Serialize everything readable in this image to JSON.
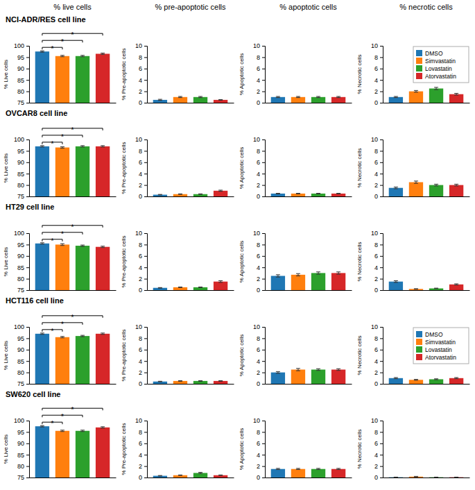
{
  "chart_data": [
    {
      "type": "bar",
      "title": "% live cells",
      "subtitle": "NCI-ADR/RES cell line",
      "ylabel": "% Live cells",
      "categories": [
        null
      ],
      "series": [
        {
          "values": [
            97.5
          ],
          "errors": [
            0.3
          ]
        },
        {
          "values": [
            95.5
          ],
          "errors": [
            0.3
          ]
        },
        {
          "values": [
            95.5
          ],
          "errors": [
            0.3
          ]
        },
        {
          "values": [
            96.5
          ],
          "errors": [
            0.3
          ]
        }
      ],
      "ylim": [
        75,
        100
      ],
      "yticks": [
        75,
        80,
        85,
        90,
        95,
        100
      ],
      "annotations": [
        {
          "text": "*",
          "from": 0,
          "to": 1
        },
        {
          "text": "*",
          "from": 0,
          "to": 2
        },
        {
          "text": "*",
          "from": 0,
          "to": 3
        }
      ]
    },
    {
      "type": "bar",
      "title": "% pre-apoptotic cells",
      "ylabel": "% Pre-apoptotic cells",
      "categories": [
        null
      ],
      "series": [
        {
          "values": [
            0.5
          ],
          "errors": [
            0.1
          ]
        },
        {
          "values": [
            1.0
          ],
          "errors": [
            0.1
          ]
        },
        {
          "values": [
            1.0
          ],
          "errors": [
            0.1
          ]
        },
        {
          "values": [
            0.5
          ],
          "errors": [
            0.05
          ]
        }
      ],
      "ylim": [
        0,
        10
      ],
      "yticks": [
        0,
        2,
        4,
        6,
        8,
        10
      ]
    },
    {
      "type": "bar",
      "title": "% apoptotic cells",
      "ylabel": "% Apoptotic cells",
      "categories": [
        null
      ],
      "series": [
        {
          "values": [
            1.0
          ],
          "errors": [
            0.1
          ]
        },
        {
          "values": [
            1.0
          ],
          "errors": [
            0.1
          ]
        },
        {
          "values": [
            1.0
          ],
          "errors": [
            0.1
          ]
        },
        {
          "values": [
            1.0
          ],
          "errors": [
            0.1
          ]
        }
      ],
      "ylim": [
        0,
        10
      ],
      "yticks": [
        0,
        2,
        4,
        6,
        8,
        10
      ]
    },
    {
      "type": "bar",
      "title": "% necrotic cells",
      "ylabel": "% Necrotic cells",
      "categories": [
        null
      ],
      "series": [
        {
          "name": "DMSO",
          "values": [
            1.0
          ],
          "errors": [
            0.1
          ]
        },
        {
          "name": "Simvastatin",
          "values": [
            2.0
          ],
          "errors": [
            0.15
          ]
        },
        {
          "name": "Lovastatin",
          "values": [
            2.5
          ],
          "errors": [
            0.2
          ]
        },
        {
          "name": "Atorvastatin",
          "values": [
            1.5
          ],
          "errors": [
            0.15
          ]
        }
      ],
      "ylim": [
        0,
        10
      ],
      "yticks": [
        0,
        2,
        4,
        6,
        8,
        10
      ],
      "legend": "upper right"
    },
    {
      "type": "bar",
      "subtitle": "OVCAR8 cell line",
      "ylabel": "% Live cells",
      "categories": [
        null
      ],
      "series": [
        {
          "values": [
            97.0
          ],
          "errors": [
            0.3
          ]
        },
        {
          "values": [
            96.5
          ],
          "errors": [
            0.3
          ]
        },
        {
          "values": [
            97.0
          ],
          "errors": [
            0.3
          ]
        },
        {
          "values": [
            97.0
          ],
          "errors": [
            0.3
          ]
        }
      ],
      "ylim": [
        75,
        100
      ],
      "yticks": [
        75,
        80,
        85,
        90,
        95,
        100
      ],
      "annotations": [
        {
          "text": "*",
          "from": 0,
          "to": 1
        },
        {
          "text": "*",
          "from": 0,
          "to": 2
        },
        {
          "text": "*",
          "from": 0,
          "to": 3
        }
      ]
    },
    {
      "type": "bar",
      "ylabel": "% Pre-apoptotic cells",
      "categories": [
        null
      ],
      "series": [
        {
          "values": [
            0.3
          ],
          "errors": [
            0.05
          ]
        },
        {
          "values": [
            0.4
          ],
          "errors": [
            0.05
          ]
        },
        {
          "values": [
            0.4
          ],
          "errors": [
            0.05
          ]
        },
        {
          "values": [
            1.0
          ],
          "errors": [
            0.1
          ]
        }
      ],
      "ylim": [
        0,
        10
      ],
      "yticks": [
        0,
        2,
        4,
        6,
        8,
        10
      ]
    },
    {
      "type": "bar",
      "ylabel": "% Apoptotic cells",
      "categories": [
        null
      ],
      "series": [
        {
          "values": [
            0.5
          ],
          "errors": [
            0.05
          ]
        },
        {
          "values": [
            0.5
          ],
          "errors": [
            0.05
          ]
        },
        {
          "values": [
            0.5
          ],
          "errors": [
            0.05
          ]
        },
        {
          "values": [
            0.5
          ],
          "errors": [
            0.05
          ]
        }
      ],
      "ylim": [
        0,
        10
      ],
      "yticks": [
        0,
        2,
        4,
        6,
        8,
        10
      ]
    },
    {
      "type": "bar",
      "ylabel": "% Necrotic cells",
      "categories": [
        null
      ],
      "series": [
        {
          "values": [
            1.5
          ],
          "errors": [
            0.15
          ]
        },
        {
          "values": [
            2.5
          ],
          "errors": [
            0.2
          ]
        },
        {
          "values": [
            2.0
          ],
          "errors": [
            0.15
          ]
        },
        {
          "values": [
            2.0
          ],
          "errors": [
            0.15
          ]
        }
      ],
      "ylim": [
        0,
        10
      ],
      "yticks": [
        0,
        2,
        4,
        6,
        8,
        10
      ]
    },
    {
      "type": "bar",
      "subtitle": "HT29 cell line",
      "ylabel": "% Live cells",
      "categories": [
        null
      ],
      "series": [
        {
          "values": [
            95.5
          ],
          "errors": [
            0.3
          ]
        },
        {
          "values": [
            95.0
          ],
          "errors": [
            0.4
          ]
        },
        {
          "values": [
            94.5
          ],
          "errors": [
            0.3
          ]
        },
        {
          "values": [
            94.0
          ],
          "errors": [
            0.3
          ]
        }
      ],
      "ylim": [
        75,
        100
      ],
      "yticks": [
        75,
        80,
        85,
        90,
        95,
        100
      ],
      "annotations": [
        {
          "text": "*",
          "from": 0,
          "to": 1
        },
        {
          "text": "*",
          "from": 0,
          "to": 2
        },
        {
          "text": "*",
          "from": 0,
          "to": 3
        }
      ]
    },
    {
      "type": "bar",
      "ylabel": "% Pre-apoptotic cells",
      "categories": [
        null
      ],
      "series": [
        {
          "values": [
            0.4
          ],
          "errors": [
            0.05
          ]
        },
        {
          "values": [
            0.5
          ],
          "errors": [
            0.05
          ]
        },
        {
          "values": [
            0.5
          ],
          "errors": [
            0.05
          ]
        },
        {
          "values": [
            1.5
          ],
          "errors": [
            0.15
          ]
        }
      ],
      "ylim": [
        0,
        10
      ],
      "yticks": [
        0,
        2,
        4,
        6,
        8,
        10
      ]
    },
    {
      "type": "bar",
      "ylabel": "% Apoptotic cells",
      "categories": [
        null
      ],
      "series": [
        {
          "values": [
            2.5
          ],
          "errors": [
            0.2
          ]
        },
        {
          "values": [
            2.7
          ],
          "errors": [
            0.2
          ]
        },
        {
          "values": [
            3.0
          ],
          "errors": [
            0.2
          ]
        },
        {
          "values": [
            3.0
          ],
          "errors": [
            0.2
          ]
        }
      ],
      "ylim": [
        0,
        10
      ],
      "yticks": [
        0,
        2,
        4,
        6,
        8,
        10
      ]
    },
    {
      "type": "bar",
      "ylabel": "% Necrotic cells",
      "categories": [
        null
      ],
      "series": [
        {
          "values": [
            1.5
          ],
          "errors": [
            0.15
          ]
        },
        {
          "values": [
            0.2
          ],
          "errors": [
            0.05
          ]
        },
        {
          "values": [
            0.3
          ],
          "errors": [
            0.05
          ]
        },
        {
          "values": [
            1.0
          ],
          "errors": [
            0.1
          ]
        }
      ],
      "ylim": [
        0,
        10
      ],
      "yticks": [
        0,
        2,
        4,
        6,
        8,
        10
      ]
    },
    {
      "type": "bar",
      "subtitle": "HCT116 cell line",
      "ylabel": "% Live cells",
      "categories": [
        null
      ],
      "series": [
        {
          "values": [
            97.0
          ],
          "errors": [
            0.3
          ]
        },
        {
          "values": [
            95.5
          ],
          "errors": [
            0.3
          ]
        },
        {
          "values": [
            96.0
          ],
          "errors": [
            0.3
          ]
        },
        {
          "values": [
            97.0
          ],
          "errors": [
            0.3
          ]
        }
      ],
      "ylim": [
        75,
        100
      ],
      "yticks": [
        75,
        80,
        85,
        90,
        95,
        100
      ],
      "annotations": [
        {
          "text": "*",
          "from": 0,
          "to": 1
        },
        {
          "text": "*",
          "from": 0,
          "to": 2
        },
        {
          "text": "*",
          "from": 0,
          "to": 3
        }
      ]
    },
    {
      "type": "bar",
      "ylabel": "% Pre-apoptotic cells",
      "categories": [
        null
      ],
      "series": [
        {
          "values": [
            0.4
          ],
          "errors": [
            0.05
          ]
        },
        {
          "values": [
            0.5
          ],
          "errors": [
            0.05
          ]
        },
        {
          "values": [
            0.5
          ],
          "errors": [
            0.05
          ]
        },
        {
          "values": [
            0.5
          ],
          "errors": [
            0.05
          ]
        }
      ],
      "ylim": [
        0,
        10
      ],
      "yticks": [
        0,
        2,
        4,
        6,
        8,
        10
      ]
    },
    {
      "type": "bar",
      "ylabel": "% Apoptotic cells",
      "categories": [
        null
      ],
      "series": [
        {
          "values": [
            2.0
          ],
          "errors": [
            0.15
          ]
        },
        {
          "values": [
            2.5
          ],
          "errors": [
            0.2
          ]
        },
        {
          "values": [
            2.5
          ],
          "errors": [
            0.15
          ]
        },
        {
          "values": [
            2.5
          ],
          "errors": [
            0.15
          ]
        }
      ],
      "ylim": [
        0,
        10
      ],
      "yticks": [
        0,
        2,
        4,
        6,
        8,
        10
      ]
    },
    {
      "type": "bar",
      "ylabel": "% Necrotic cells",
      "categories": [
        null
      ],
      "series": [
        {
          "name": "DMSO",
          "values": [
            1.0
          ],
          "errors": [
            0.1
          ]
        },
        {
          "name": "Simvastatin",
          "values": [
            0.7
          ],
          "errors": [
            0.08
          ]
        },
        {
          "name": "Lovastatin",
          "values": [
            0.8
          ],
          "errors": [
            0.08
          ]
        },
        {
          "name": "Atorvastatin",
          "values": [
            1.0
          ],
          "errors": [
            0.1
          ]
        }
      ],
      "ylim": [
        0,
        10
      ],
      "yticks": [
        0,
        2,
        4,
        6,
        8,
        10
      ],
      "legend": "upper right"
    },
    {
      "type": "bar",
      "subtitle": "SW620 cell line",
      "ylabel": "% Live cells",
      "categories": [
        null
      ],
      "series": [
        {
          "values": [
            97.5
          ],
          "errors": [
            0.3
          ]
        },
        {
          "values": [
            95.5
          ],
          "errors": [
            0.3
          ]
        },
        {
          "values": [
            95.5
          ],
          "errors": [
            0.3
          ]
        },
        {
          "values": [
            97.0
          ],
          "errors": [
            0.3
          ]
        }
      ],
      "ylim": [
        75,
        100
      ],
      "yticks": [
        75,
        80,
        85,
        90,
        95,
        100
      ],
      "annotations": [
        {
          "text": "*",
          "from": 0,
          "to": 1
        },
        {
          "text": "*",
          "from": 0,
          "to": 2
        },
        {
          "text": "*",
          "from": 0,
          "to": 3
        }
      ]
    },
    {
      "type": "bar",
      "ylabel": "% Pre-apoptotic cells",
      "categories": [
        null
      ],
      "series": [
        {
          "values": [
            0.3
          ],
          "errors": [
            0.05
          ]
        },
        {
          "values": [
            0.4
          ],
          "errors": [
            0.05
          ]
        },
        {
          "values": [
            0.8
          ],
          "errors": [
            0.1
          ]
        },
        {
          "values": [
            0.4
          ],
          "errors": [
            0.05
          ]
        }
      ],
      "ylim": [
        0,
        10
      ],
      "yticks": [
        0,
        2,
        4,
        6,
        8,
        10
      ]
    },
    {
      "type": "bar",
      "ylabel": "% Apoptotic cells",
      "categories": [
        null
      ],
      "series": [
        {
          "values": [
            1.5
          ],
          "errors": [
            0.1
          ]
        },
        {
          "values": [
            1.5
          ],
          "errors": [
            0.1
          ]
        },
        {
          "values": [
            1.5
          ],
          "errors": [
            0.1
          ]
        },
        {
          "values": [
            1.5
          ],
          "errors": [
            0.1
          ]
        }
      ],
      "ylim": [
        0,
        10
      ],
      "yticks": [
        0,
        2,
        4,
        6,
        8,
        10
      ]
    },
    {
      "type": "bar",
      "ylabel": "% Necrotic cells",
      "categories": [
        null
      ],
      "series": [
        {
          "values": [
            0.05
          ],
          "errors": [
            0.02
          ]
        },
        {
          "values": [
            0.15
          ],
          "errors": [
            0.05
          ]
        },
        {
          "values": [
            0.05
          ],
          "errors": [
            0.02
          ]
        },
        {
          "values": [
            0.05
          ],
          "errors": [
            0.02
          ]
        }
      ],
      "ylim": [
        0,
        10
      ],
      "yticks": [
        0,
        2,
        4,
        6,
        8,
        10
      ]
    }
  ]
}
